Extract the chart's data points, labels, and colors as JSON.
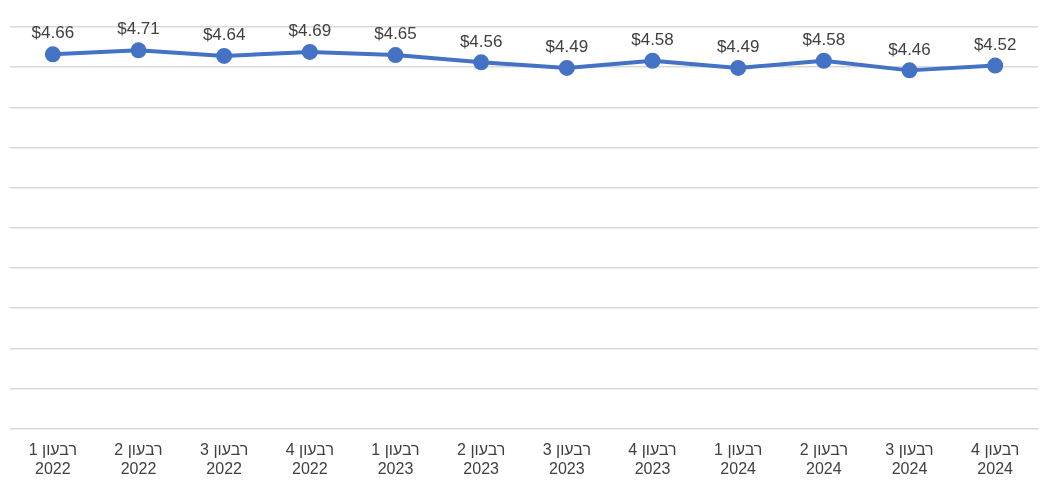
{
  "chart_data": {
    "type": "line",
    "categories": [
      "רבעון 1\n2022",
      "רבעון 2\n2022",
      "רבעון 3\n2022",
      "רבעון 4\n2022",
      "רבעון 1\n2023",
      "רבעון 2\n2023",
      "רבעון 3\n2023",
      "רבעון 4\n2023",
      "רבעון 1\n2024",
      "רבעון 2\n2024",
      "רבעון 3\n2024",
      "רבעון 4\n2024"
    ],
    "values": [
      4.66,
      4.71,
      4.64,
      4.69,
      4.65,
      4.56,
      4.49,
      4.58,
      4.49,
      4.58,
      4.46,
      4.52
    ],
    "value_labels": [
      "$4.66",
      "$4.71",
      "$4.64",
      "$4.69",
      "$4.65",
      "$4.56",
      "$4.49",
      "$4.58",
      "$4.49",
      "$4.58",
      "$4.46",
      "$4.52"
    ],
    "color": "#4472c4",
    "ylim": [
      0,
      5
    ],
    "yticks": [
      {
        "value": 0,
        "label": null
      },
      {
        "value": 0.5,
        "label": null
      },
      {
        "value": 1,
        "label": null
      },
      {
        "value": 1.5,
        "label": null
      },
      {
        "value": 2,
        "label": null
      },
      {
        "value": 2.5,
        "label": null
      },
      {
        "value": 3,
        "label": null
      },
      {
        "value": 3.5,
        "label": null
      },
      {
        "value": 4,
        "label": null
      },
      {
        "value": 4.5,
        "label": null
      },
      {
        "value": 5,
        "label": null
      }
    ],
    "tick_labels": "x",
    "grid": "y",
    "marker": "circle",
    "line_style": "solid",
    "legend": false
  }
}
